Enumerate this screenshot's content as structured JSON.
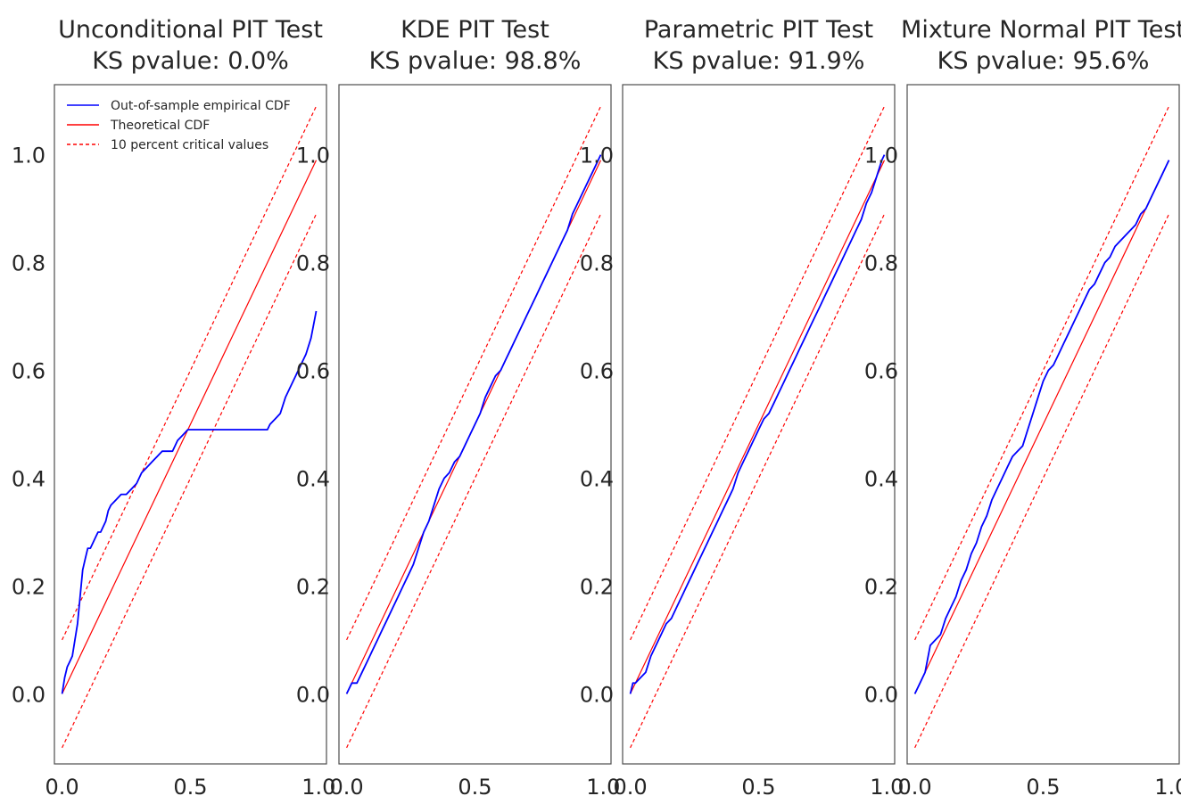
{
  "chart_data": [
    {
      "type": "line",
      "title": "Unconditional PIT Test",
      "subtitle": "KS pvalue: 0.0%",
      "xlabel": "",
      "ylabel": "",
      "xlim": [
        -0.03,
        1.03
      ],
      "ylim": [
        -0.13,
        1.13
      ],
      "x_ticks": [
        "0.0",
        "0.5",
        "1.0"
      ],
      "y_ticks": [
        "0.0",
        "0.2",
        "0.4",
        "0.6",
        "0.8",
        "1.0"
      ],
      "grid": false,
      "legend": {
        "position": "top-right",
        "entries": [
          "Out-of-sample empirical CDF",
          "Theoretical CDF",
          "10 percent critical values"
        ]
      },
      "series": [
        {
          "name": "Out-of-sample empirical CDF",
          "color": "#0000ff",
          "style": "solid",
          "x": [
            0,
            0.01,
            0.02,
            0.03,
            0.04,
            0.05,
            0.06,
            0.07,
            0.08,
            0.09,
            0.1,
            0.11,
            0.12,
            0.13,
            0.14,
            0.15,
            0.17,
            0.18,
            0.19,
            0.21,
            0.23,
            0.25,
            0.27,
            0.29,
            0.31,
            0.33,
            0.35,
            0.37,
            0.39,
            0.41,
            0.43,
            0.45,
            0.47,
            0.49,
            0.55,
            0.6,
            0.7,
            0.8,
            0.81,
            0.83,
            0.85,
            0.87,
            0.89,
            0.91,
            0.93,
            0.95,
            0.97,
            0.99
          ],
          "y": [
            0,
            0.03,
            0.05,
            0.06,
            0.07,
            0.1,
            0.13,
            0.18,
            0.23,
            0.25,
            0.27,
            0.27,
            0.28,
            0.29,
            0.3,
            0.3,
            0.32,
            0.34,
            0.35,
            0.36,
            0.37,
            0.37,
            0.38,
            0.39,
            0.41,
            0.42,
            0.43,
            0.44,
            0.45,
            0.45,
            0.45,
            0.47,
            0.48,
            0.49,
            0.49,
            0.49,
            0.49,
            0.49,
            0.5,
            0.51,
            0.52,
            0.55,
            0.57,
            0.59,
            0.61,
            0.63,
            0.66,
            0.71
          ]
        },
        {
          "name": "Theoretical CDF",
          "color": "#ff0000",
          "style": "solid",
          "x": [
            0,
            0.99
          ],
          "y": [
            0,
            0.99
          ]
        },
        {
          "name": "10 percent critical values",
          "color": "#ff0000",
          "style": "dashed",
          "x": [
            0,
            0.99
          ],
          "y": [
            0.1,
            1.09
          ]
        },
        {
          "name": "",
          "color": "#ff0000",
          "style": "dashed",
          "x": [
            0,
            0.99
          ],
          "y": [
            -0.1,
            0.89
          ]
        }
      ]
    },
    {
      "type": "line",
      "title": "KDE PIT Test",
      "subtitle": "KS pvalue: 98.8%",
      "xlabel": "",
      "ylabel": "",
      "xlim": [
        -0.03,
        1.03
      ],
      "ylim": [
        -0.13,
        1.13
      ],
      "x_ticks": [
        "0.0",
        "0.5",
        "1.0"
      ],
      "y_ticks": [
        "0.0",
        "0.2",
        "0.4",
        "0.6",
        "0.8",
        "1.0"
      ],
      "grid": false,
      "series": [
        {
          "name": "Out-of-sample empirical CDF",
          "color": "#0000ff",
          "style": "solid",
          "x": [
            0,
            0.02,
            0.04,
            0.06,
            0.08,
            0.1,
            0.12,
            0.14,
            0.16,
            0.18,
            0.2,
            0.22,
            0.24,
            0.26,
            0.28,
            0.3,
            0.32,
            0.34,
            0.36,
            0.38,
            0.4,
            0.42,
            0.44,
            0.46,
            0.48,
            0.5,
            0.52,
            0.54,
            0.56,
            0.58,
            0.6,
            0.62,
            0.64,
            0.66,
            0.68,
            0.7,
            0.72,
            0.74,
            0.76,
            0.78,
            0.8,
            0.82,
            0.84,
            0.86,
            0.88,
            0.9,
            0.92,
            0.94,
            0.96,
            0.98,
            0.99
          ],
          "y": [
            0,
            0.02,
            0.02,
            0.04,
            0.06,
            0.08,
            0.1,
            0.12,
            0.14,
            0.16,
            0.18,
            0.2,
            0.22,
            0.24,
            0.27,
            0.3,
            0.32,
            0.35,
            0.38,
            0.4,
            0.41,
            0.43,
            0.44,
            0.46,
            0.48,
            0.5,
            0.52,
            0.55,
            0.57,
            0.59,
            0.6,
            0.62,
            0.64,
            0.66,
            0.68,
            0.7,
            0.72,
            0.74,
            0.76,
            0.78,
            0.8,
            0.82,
            0.84,
            0.86,
            0.89,
            0.91,
            0.93,
            0.95,
            0.97,
            0.99,
            1.0
          ]
        },
        {
          "name": "Theoretical CDF",
          "color": "#ff0000",
          "style": "solid",
          "x": [
            0,
            0.99
          ],
          "y": [
            0,
            0.99
          ]
        },
        {
          "name": "10 percent critical values",
          "color": "#ff0000",
          "style": "dashed",
          "x": [
            0,
            0.99
          ],
          "y": [
            0.1,
            1.09
          ]
        },
        {
          "name": "",
          "color": "#ff0000",
          "style": "dashed",
          "x": [
            0,
            0.99
          ],
          "y": [
            -0.1,
            0.89
          ]
        }
      ]
    },
    {
      "type": "line",
      "title": "Parametric PIT Test",
      "subtitle": "KS pvalue: 91.9%",
      "xlabel": "",
      "ylabel": "",
      "xlim": [
        -0.03,
        1.03
      ],
      "ylim": [
        -0.13,
        1.13
      ],
      "x_ticks": [
        "0.0",
        "0.5",
        "1.0"
      ],
      "y_ticks": [
        "0.0",
        "0.2",
        "0.4",
        "0.6",
        "0.8",
        "1.0"
      ],
      "grid": false,
      "series": [
        {
          "name": "Out-of-sample empirical CDF",
          "color": "#0000ff",
          "style": "solid",
          "x": [
            0,
            0.01,
            0.02,
            0.04,
            0.06,
            0.08,
            0.1,
            0.12,
            0.14,
            0.16,
            0.18,
            0.2,
            0.22,
            0.24,
            0.26,
            0.28,
            0.3,
            0.32,
            0.34,
            0.36,
            0.38,
            0.4,
            0.42,
            0.44,
            0.46,
            0.48,
            0.5,
            0.52,
            0.54,
            0.56,
            0.58,
            0.6,
            0.62,
            0.64,
            0.66,
            0.68,
            0.7,
            0.72,
            0.74,
            0.76,
            0.78,
            0.8,
            0.82,
            0.84,
            0.86,
            0.88,
            0.9,
            0.92,
            0.94,
            0.96,
            0.98,
            0.99
          ],
          "y": [
            0,
            0.02,
            0.02,
            0.03,
            0.04,
            0.07,
            0.09,
            0.11,
            0.13,
            0.14,
            0.16,
            0.18,
            0.2,
            0.22,
            0.24,
            0.26,
            0.28,
            0.3,
            0.32,
            0.34,
            0.36,
            0.38,
            0.41,
            0.43,
            0.45,
            0.47,
            0.49,
            0.51,
            0.52,
            0.54,
            0.56,
            0.58,
            0.6,
            0.62,
            0.64,
            0.66,
            0.68,
            0.7,
            0.72,
            0.74,
            0.76,
            0.78,
            0.8,
            0.82,
            0.84,
            0.86,
            0.88,
            0.91,
            0.93,
            0.96,
            0.99,
            1.0
          ]
        },
        {
          "name": "Theoretical CDF",
          "color": "#ff0000",
          "style": "solid",
          "x": [
            0,
            0.99
          ],
          "y": [
            0,
            0.99
          ]
        },
        {
          "name": "10 percent critical values",
          "color": "#ff0000",
          "style": "dashed",
          "x": [
            0,
            0.99
          ],
          "y": [
            0.1,
            1.09
          ]
        },
        {
          "name": "",
          "color": "#ff0000",
          "style": "dashed",
          "x": [
            0,
            0.99
          ],
          "y": [
            -0.1,
            0.89
          ]
        }
      ]
    },
    {
      "type": "line",
      "title": "Mixture Normal PIT Test",
      "subtitle": "KS pvalue: 95.6%",
      "xlabel": "",
      "ylabel": "",
      "xlim": [
        -0.03,
        1.03
      ],
      "ylim": [
        -0.13,
        1.13
      ],
      "x_ticks": [
        "0.0",
        "0.5",
        "1.0"
      ],
      "y_ticks": [
        "0.0",
        "0.2",
        "0.4",
        "0.6",
        "0.8",
        "1.0"
      ],
      "grid": false,
      "series": [
        {
          "name": "Out-of-sample empirical CDF",
          "color": "#0000ff",
          "style": "solid",
          "x": [
            0,
            0.02,
            0.04,
            0.06,
            0.08,
            0.1,
            0.12,
            0.14,
            0.16,
            0.18,
            0.2,
            0.22,
            0.24,
            0.26,
            0.28,
            0.3,
            0.32,
            0.34,
            0.36,
            0.38,
            0.4,
            0.42,
            0.44,
            0.46,
            0.48,
            0.5,
            0.52,
            0.54,
            0.56,
            0.58,
            0.6,
            0.62,
            0.64,
            0.66,
            0.68,
            0.7,
            0.72,
            0.74,
            0.76,
            0.78,
            0.8,
            0.82,
            0.84,
            0.86,
            0.88,
            0.9,
            0.92,
            0.94,
            0.96,
            0.98,
            0.99
          ],
          "y": [
            0,
            0.02,
            0.04,
            0.09,
            0.1,
            0.11,
            0.14,
            0.16,
            0.18,
            0.21,
            0.23,
            0.26,
            0.28,
            0.31,
            0.33,
            0.36,
            0.38,
            0.4,
            0.42,
            0.44,
            0.45,
            0.46,
            0.49,
            0.52,
            0.55,
            0.58,
            0.6,
            0.61,
            0.63,
            0.65,
            0.67,
            0.69,
            0.71,
            0.73,
            0.75,
            0.76,
            0.78,
            0.8,
            0.81,
            0.83,
            0.84,
            0.85,
            0.86,
            0.87,
            0.89,
            0.9,
            0.92,
            0.94,
            0.96,
            0.98,
            0.99
          ]
        },
        {
          "name": "Theoretical CDF",
          "color": "#ff0000",
          "style": "solid",
          "x": [
            0,
            0.99
          ],
          "y": [
            0,
            0.99
          ]
        },
        {
          "name": "10 percent critical values",
          "color": "#ff0000",
          "style": "dashed",
          "x": [
            0,
            0.99
          ],
          "y": [
            0.1,
            1.09
          ]
        },
        {
          "name": "",
          "color": "#ff0000",
          "style": "dashed",
          "x": [
            0,
            0.99
          ],
          "y": [
            -0.1,
            0.89
          ]
        }
      ]
    }
  ]
}
